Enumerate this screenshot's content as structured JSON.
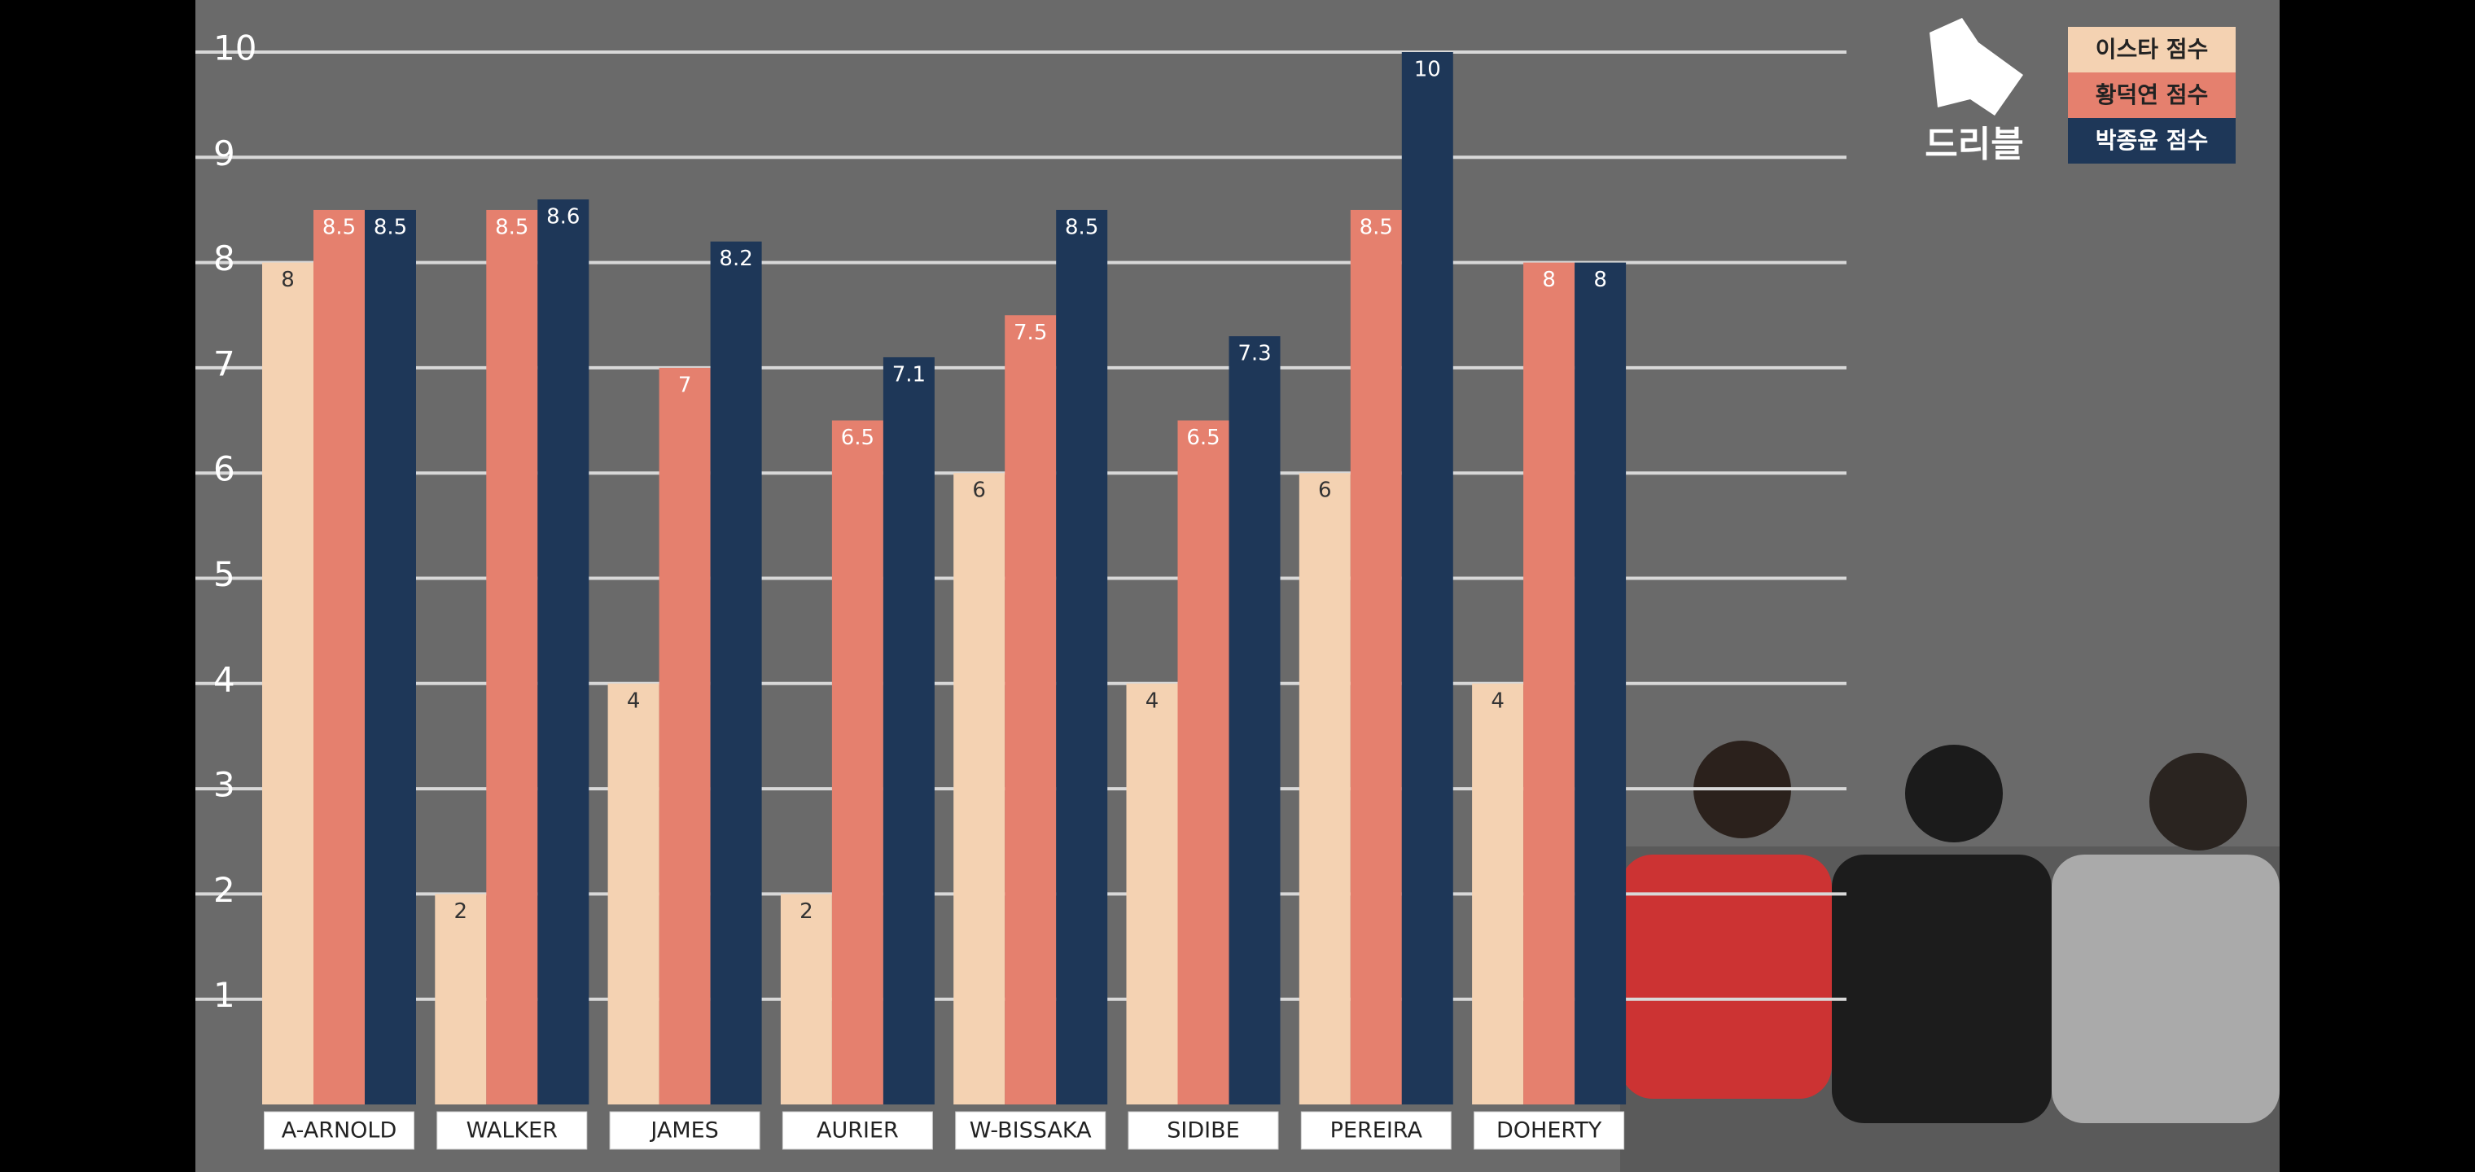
{
  "chart_data": {
    "type": "bar",
    "categories": [
      "A-ARNOLD",
      "WALKER",
      "JAMES",
      "AURIER",
      "W-BISSAKA",
      "SIDIBE",
      "PEREIRA",
      "DOHERTY"
    ],
    "series": [
      {
        "name": "이스타 점수",
        "color": "#f4d2b2",
        "values": [
          8,
          2,
          4,
          2,
          6,
          4,
          6,
          4
        ]
      },
      {
        "name": "황덕연 점수",
        "color": "#e5806e",
        "values": [
          8.5,
          8.5,
          7,
          6.5,
          7.5,
          6.5,
          8.5,
          8
        ]
      },
      {
        "name": "박종윤 점수",
        "color": "#1e3758",
        "values": [
          8.5,
          8.6,
          8.2,
          7.1,
          8.5,
          7.3,
          10,
          8
        ]
      }
    ],
    "ylim": [
      0,
      10
    ],
    "yticks": [
      1,
      2,
      3,
      4,
      5,
      6,
      7,
      8,
      9,
      10
    ],
    "grid": true,
    "legend": "top-right",
    "logo": "드리블"
  }
}
